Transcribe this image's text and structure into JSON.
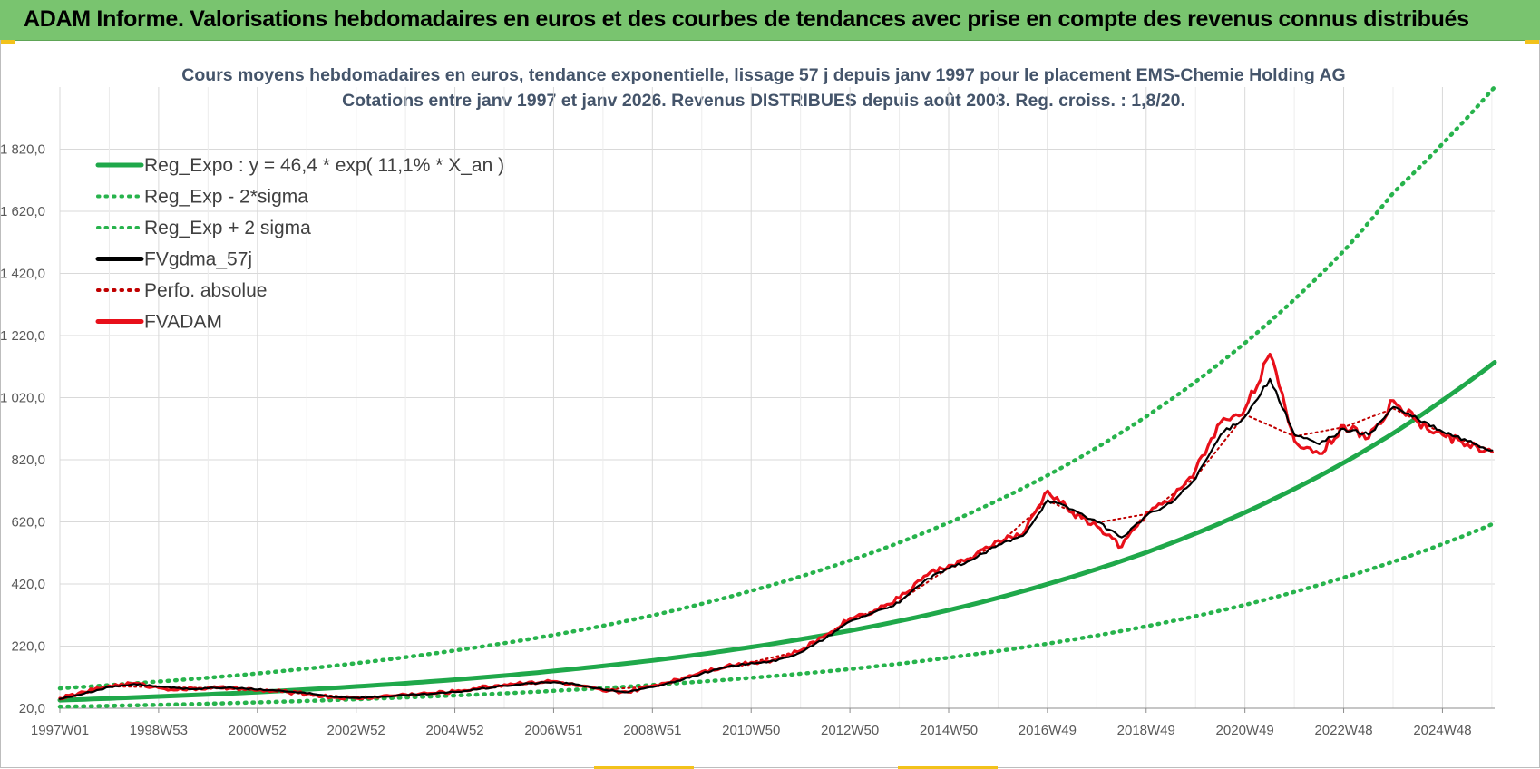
{
  "banner": {
    "title": "ADAM Informe. Valorisations hebdomadaires en euros et des courbes de tendances avec prise en compte des revenus connus distribués"
  },
  "colors": {
    "banner_bg": "#79c46f",
    "reg_expo": "#1fa84a",
    "sigma_band": "#27b34c",
    "fvgdma": "#000000",
    "perfo": "#c00000",
    "fvadam": "#e8101a",
    "grid": "#d9d9d9"
  },
  "chart_data": {
    "type": "line",
    "title": "Cours moyens hebdomadaires en euros, tendance exponentielle, lissage 57 j depuis janv 1997  pour le placement EMS-Chemie Holding AG",
    "subtitle": "Cotations entre janv 1997 et janv 2026. Revenus DISTRIBUES depuis août 2003. Reg. croiss. : 1,8/20.",
    "ylim": [
      20,
      2020
    ],
    "yticks": [
      "20,0",
      "220,0",
      "420,0",
      "620,0",
      "820,0",
      "1 020,0",
      "1 220,0",
      "1 420,0",
      "1 620,0",
      "1 820,0"
    ],
    "xlim": [
      1997.0,
      2026.05
    ],
    "xtick_labels": [
      "1997W01",
      "1998W53",
      "2000W52",
      "2002W52",
      "2004W52",
      "2006W51",
      "2008W51",
      "2010W50",
      "2012W50",
      "2014W50",
      "2016W49",
      "2018W49",
      "2020W49",
      "2022W48",
      "2024W48"
    ],
    "grid": true,
    "legend_position": "top-left",
    "legend": [
      {
        "label": "Reg_Expo : y = 46,4 * exp( 11,1% *  X_an )",
        "style": "solid",
        "color": "#1fa84a"
      },
      {
        "label": "Reg_Exp - 2*sigma",
        "style": "dotted",
        "color": "#27b34c"
      },
      {
        "label": "Reg_Exp + 2 sigma",
        "style": "dotted",
        "color": "#27b34c"
      },
      {
        "label": "FVgdma_57j",
        "style": "solid",
        "color": "#000000"
      },
      {
        "label": "Perfo. absolue",
        "style": "dotted",
        "color": "#c00000"
      },
      {
        "label": "FVADAM",
        "style": "solid",
        "color": "#e8101a"
      }
    ],
    "series": [
      {
        "name": "Reg_Expo : y = 46,4 * exp( 11,1% *  X_an )",
        "x": [
          1997.0,
          1999.0,
          2001.0,
          2003.0,
          2005.0,
          2007.0,
          2009.0,
          2011.0,
          2013.0,
          2015.0,
          2017.0,
          2019.0,
          2021.0,
          2023.0,
          2025.0,
          2026.05
        ],
        "y": [
          46,
          58,
          72,
          90,
          112,
          140,
          174,
          217,
          270,
          336,
          420,
          522,
          651,
          811,
          1012,
          1134
        ]
      },
      {
        "name": "Reg_Exp - 2*sigma",
        "x": [
          1997.0,
          1999.0,
          2001.0,
          2003.0,
          2005.0,
          2007.0,
          2009.0,
          2011.0,
          2013.0,
          2015.0,
          2017.0,
          2019.0,
          2021.0,
          2023.0,
          2025.0,
          2026.05
        ],
        "y": [
          25,
          31,
          39,
          49,
          61,
          76,
          95,
          118,
          146,
          183,
          228,
          284,
          353,
          441,
          549,
          616
        ]
      },
      {
        "name": "Reg_Exp + 2 sigma",
        "x": [
          1997.0,
          1999.0,
          2001.0,
          2003.0,
          2005.0,
          2007.0,
          2009.0,
          2011.0,
          2013.0,
          2015.0,
          2017.0,
          2019.0,
          2021.0,
          2023.0,
          2024.0,
          2026.05
        ],
        "y": [
          84,
          106,
          132,
          165,
          206,
          256,
          319,
          398,
          496,
          618,
          770,
          960,
          1197,
          1493,
          1680,
          2020
        ]
      },
      {
        "name": "FVgdma_57j",
        "x": [
          1997.0,
          1997.5,
          1998.0,
          1998.5,
          1999.0,
          1999.5,
          2000.0,
          2000.5,
          2001.0,
          2001.5,
          2002.0,
          2002.5,
          2003.0,
          2003.5,
          2004.0,
          2004.5,
          2005.0,
          2005.5,
          2006.0,
          2006.5,
          2007.0,
          2007.5,
          2008.0,
          2008.5,
          2009.0,
          2009.5,
          2010.0,
          2010.5,
          2011.0,
          2011.5,
          2012.0,
          2012.5,
          2013.0,
          2013.5,
          2014.0,
          2014.5,
          2015.0,
          2015.5,
          2016.0,
          2016.5,
          2017.0,
          2017.5,
          2018.0,
          2018.5,
          2019.0,
          2019.5,
          2020.0,
          2020.5,
          2021.0,
          2021.5,
          2022.0,
          2022.5,
          2023.0,
          2023.5,
          2024.0,
          2024.5,
          2025.0,
          2025.5,
          2026.0
        ],
        "y": [
          50,
          68,
          88,
          98,
          90,
          82,
          84,
          86,
          80,
          76,
          68,
          58,
          54,
          57,
          62,
          66,
          72,
          82,
          92,
          100,
          104,
          96,
          80,
          72,
          88,
          108,
          132,
          152,
          166,
          172,
          200,
          245,
          300,
          330,
          360,
          430,
          470,
          500,
          545,
          575,
          690,
          660,
          620,
          570,
          640,
          680,
          760,
          900,
          960,
          1080,
          900,
          870,
          920,
          900,
          990,
          950,
          910,
          880,
          850
        ]
      },
      {
        "name": "Perfo. absolue",
        "x": [
          1997.0,
          1998.0,
          1999.0,
          2000.0,
          2001.0,
          2002.0,
          2003.0,
          2004.0,
          2005.0,
          2006.0,
          2007.0,
          2008.0,
          2009.0,
          2010.0,
          2011.0,
          2012.0,
          2013.0,
          2014.0,
          2015.0,
          2016.0,
          2017.0,
          2018.0,
          2019.0,
          2020.0,
          2021.0,
          2022.0,
          2023.0,
          2024.0,
          2025.0,
          2026.0
        ],
        "y": [
          48,
          90,
          88,
          85,
          78,
          66,
          55,
          62,
          72,
          92,
          104,
          80,
          90,
          134,
          168,
          205,
          305,
          365,
          472,
          548,
          688,
          618,
          645,
          765,
          965,
          895,
          925,
          985,
          905,
          850
        ]
      },
      {
        "name": "FVADAM",
        "x": [
          1997.0,
          1997.5,
          1998.0,
          1998.5,
          1999.0,
          1999.5,
          2000.0,
          2000.5,
          2001.0,
          2001.5,
          2002.0,
          2002.5,
          2003.0,
          2003.5,
          2004.0,
          2004.5,
          2005.0,
          2005.5,
          2006.0,
          2006.5,
          2007.0,
          2007.5,
          2008.0,
          2008.5,
          2009.0,
          2009.5,
          2010.0,
          2010.5,
          2011.0,
          2011.5,
          2012.0,
          2012.5,
          2013.0,
          2013.5,
          2014.0,
          2014.5,
          2015.0,
          2015.5,
          2016.0,
          2016.5,
          2017.0,
          2017.5,
          2018.0,
          2018.5,
          2019.0,
          2019.5,
          2020.0,
          2020.5,
          2021.0,
          2021.5,
          2022.0,
          2022.5,
          2023.0,
          2023.5,
          2024.0,
          2024.5,
          2025.0,
          2025.5,
          2026.0
        ],
        "y": [
          52,
          72,
          92,
          100,
          86,
          80,
          86,
          84,
          78,
          74,
          66,
          56,
          52,
          58,
          64,
          68,
          74,
          86,
          96,
          104,
          106,
          92,
          76,
          72,
          92,
          112,
          138,
          156,
          168,
          176,
          206,
          255,
          310,
          335,
          375,
          445,
          480,
          505,
          560,
          580,
          720,
          650,
          605,
          540,
          650,
          690,
          790,
          940,
          985,
          1160,
          880,
          840,
          930,
          890,
          1010,
          940,
          900,
          870,
          845
        ]
      }
    ]
  }
}
